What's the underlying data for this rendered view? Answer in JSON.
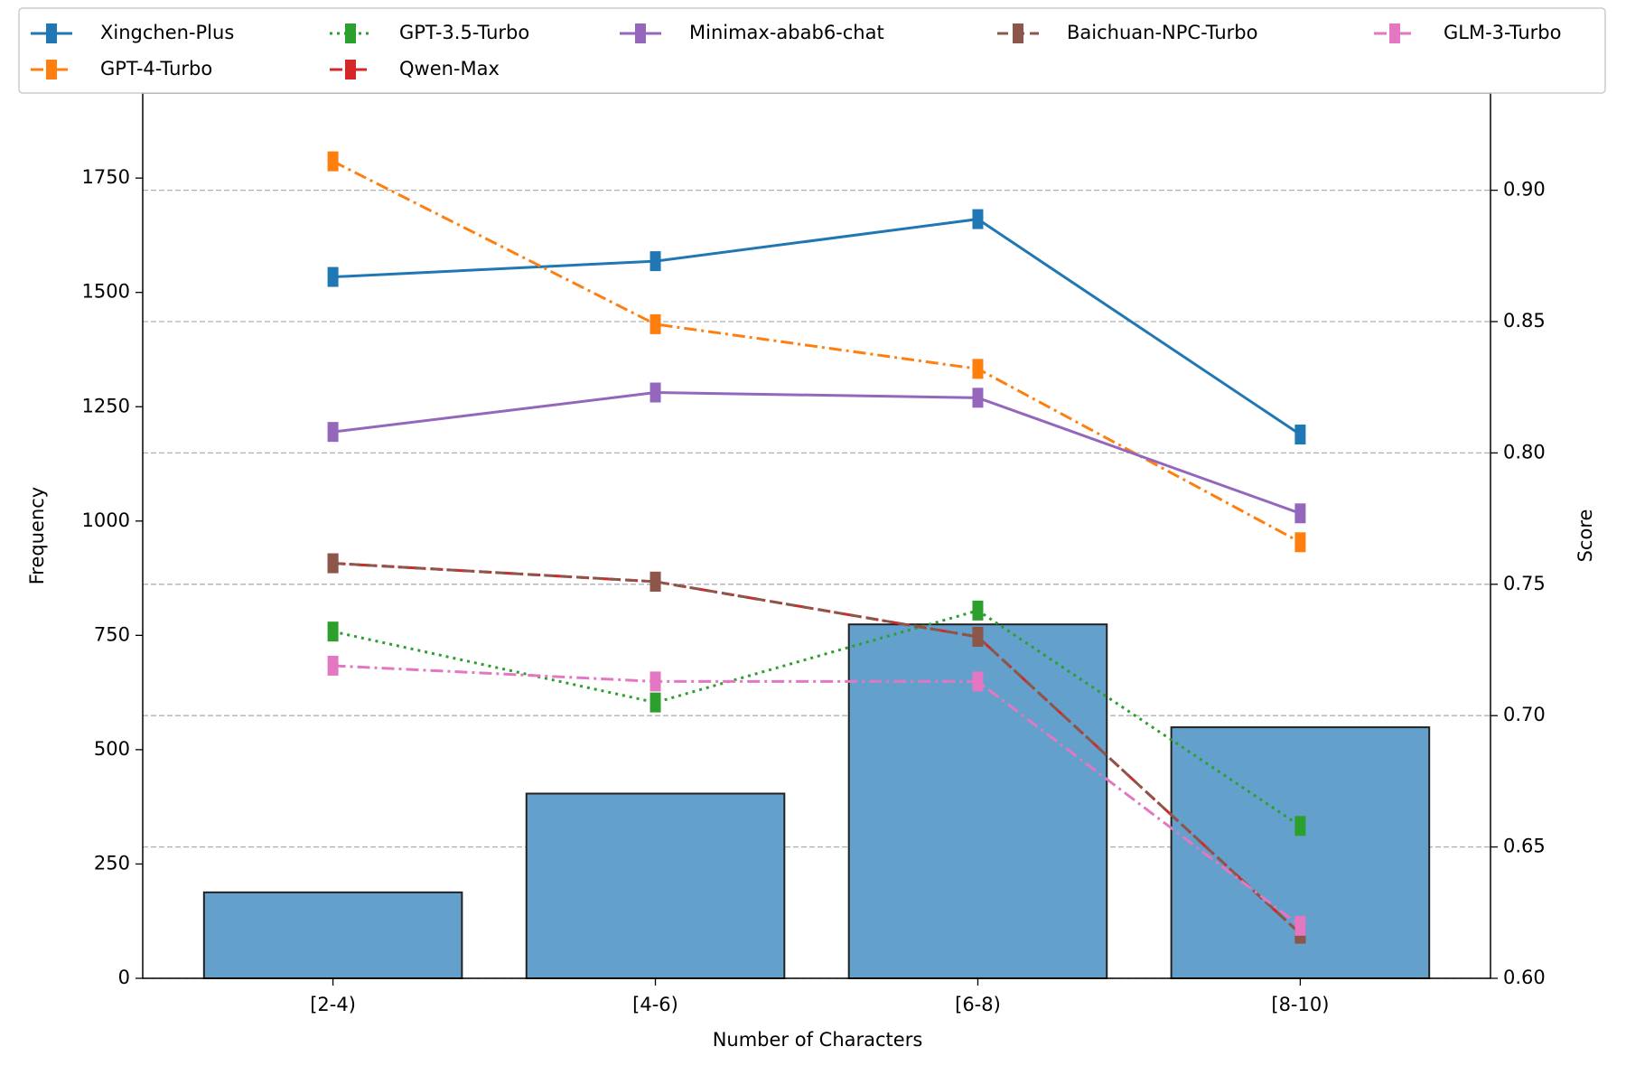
{
  "chart_data": {
    "type": "bar_line",
    "categories": [
      "[2-4)",
      "[4-6)",
      "[6-8)",
      "[8-10)"
    ],
    "xlabel": "Number of Characters",
    "ylabel": "Frequency",
    "y2label": "Score",
    "bar_values": [
      188,
      404,
      774,
      549
    ],
    "bar_color": "#63a0cc",
    "ylim": [
      0,
      1936
    ],
    "yticks": [
      0,
      250,
      500,
      750,
      1000,
      1250,
      1500,
      1750
    ],
    "y2lim": [
      0.6,
      0.937
    ],
    "y2ticks": [
      {
        "value": 0.6,
        "label": "0.60"
      },
      0.65,
      {
        "value": 0.7,
        "label": "0.70"
      },
      0.75,
      {
        "value": 0.8,
        "label": "0.80"
      },
      0.85,
      {
        "value": 0.9,
        "label": "0.90"
      }
    ],
    "grid": "y2",
    "series": [
      {
        "name": "Xingchen-Plus",
        "color": "#1f77b4",
        "linestyle": "solid",
        "axis": "y2",
        "values": [
          0.867,
          0.873,
          0.889,
          0.807
        ]
      },
      {
        "name": "GPT-4-Turbo",
        "color": "#ff7f0e",
        "linestyle": "dashdot",
        "axis": "y2",
        "values": [
          0.911,
          0.849,
          0.832,
          0.766
        ]
      },
      {
        "name": "GPT-3.5-Turbo",
        "color": "#2ca02c",
        "linestyle": "dotted",
        "axis": "y2",
        "values": [
          0.732,
          0.705,
          0.74,
          0.658
        ]
      },
      {
        "name": "Qwen-Max",
        "color": "#d62728",
        "linestyle": "dashdot",
        "axis": "y2",
        "values": [
          0.758,
          0.751,
          0.73,
          0.617
        ]
      },
      {
        "name": "Minimax-abab6-chat",
        "color": "#9467bd",
        "linestyle": "solid",
        "axis": "y2",
        "values": [
          0.808,
          0.823,
          0.821,
          0.777
        ]
      },
      {
        "name": "Baichuan-NPC-Turbo",
        "color": "#8c564b",
        "linestyle": "dashed",
        "axis": "y2",
        "values": [
          0.758,
          0.751,
          0.73,
          0.617
        ]
      },
      {
        "name": "GLM-3-Turbo",
        "color": "#e377c2",
        "linestyle": "dashdot",
        "axis": "y2",
        "values": [
          0.719,
          0.713,
          0.713,
          0.62
        ]
      }
    ]
  }
}
